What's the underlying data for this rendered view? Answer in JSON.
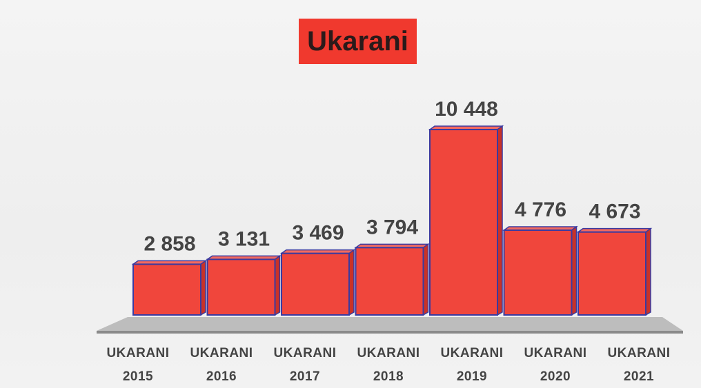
{
  "chart_data": {
    "type": "bar",
    "title": "Ukarani",
    "categories": [
      "UKARANI 2015",
      "UKARANI 2016",
      "UKARANI 2017",
      "UKARANI 2018",
      "UKARANI 2019",
      "UKARANI 2020",
      "UKARANI 2021"
    ],
    "values": [
      2858,
      3131,
      3469,
      3794,
      10448,
      4776,
      4673
    ],
    "value_labels": [
      "2 858",
      "3 131",
      "3 469",
      "3 794",
      "10 448",
      "4 776",
      "4 673"
    ],
    "color": "#f0463c"
  }
}
